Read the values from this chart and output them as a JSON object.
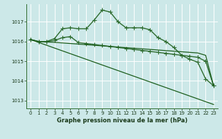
{
  "background_color": "#cce8e8",
  "grid_color": "#ffffff",
  "line_color": "#2d6b2d",
  "xlabel": "Graphe pression niveau de la mer (hPa)",
  "ylim": [
    1012.6,
    1017.9
  ],
  "xlim": [
    -0.5,
    23.5
  ],
  "yticks": [
    1013,
    1014,
    1015,
    1016,
    1017
  ],
  "xticks": [
    0,
    1,
    2,
    3,
    4,
    5,
    6,
    7,
    8,
    9,
    10,
    11,
    12,
    13,
    14,
    15,
    16,
    17,
    18,
    19,
    20,
    21,
    22,
    23
  ],
  "series": [
    {
      "x": [
        0,
        1,
        2,
        3,
        4,
        5,
        6,
        7,
        8,
        9,
        10,
        11,
        12,
        13,
        14,
        15,
        16,
        17,
        18,
        19,
        20,
        21,
        22,
        23
      ],
      "y": [
        1016.1,
        1016.0,
        1016.0,
        1016.15,
        1016.65,
        1016.7,
        1016.65,
        1016.65,
        1017.1,
        1017.6,
        1017.5,
        1017.0,
        1016.7,
        1016.7,
        1016.7,
        1016.6,
        1016.2,
        1016.0,
        1015.7,
        1015.3,
        1015.1,
        1014.95,
        1014.1,
        1013.75
      ],
      "marker": "+",
      "markersize": 4,
      "linewidth": 1.0,
      "color": "#2d6b2d"
    },
    {
      "x": [
        0,
        1,
        2,
        3,
        4,
        5,
        6,
        7,
        8,
        9,
        10,
        11,
        12,
        13,
        14,
        15,
        16,
        17,
        18,
        19,
        20,
        21,
        22,
        23
      ],
      "y": [
        1016.1,
        1016.0,
        1016.0,
        1016.05,
        1016.2,
        1016.25,
        1015.95,
        1015.9,
        1015.85,
        1015.8,
        1015.75,
        1015.7,
        1015.65,
        1015.6,
        1015.55,
        1015.5,
        1015.45,
        1015.4,
        1015.35,
        1015.3,
        1015.25,
        1015.2,
        1015.0,
        1013.75
      ],
      "marker": "+",
      "markersize": 4,
      "linewidth": 1.0,
      "color": "#2d6b2d"
    },
    {
      "x": [
        0,
        1,
        2,
        3,
        4,
        5,
        6,
        7,
        8,
        9,
        10,
        11,
        12,
        13,
        14,
        15,
        16,
        17,
        18,
        19,
        20,
        21,
        22,
        23
      ],
      "y": [
        1016.1,
        1016.0,
        1015.98,
        1015.96,
        1015.93,
        1015.9,
        1015.87,
        1015.84,
        1015.81,
        1015.78,
        1015.75,
        1015.72,
        1015.69,
        1015.66,
        1015.63,
        1015.6,
        1015.57,
        1015.54,
        1015.51,
        1015.48,
        1015.45,
        1015.42,
        1015.3,
        1013.75
      ],
      "marker": null,
      "markersize": 0,
      "linewidth": 0.9,
      "color": "#1a5c1a"
    },
    {
      "x": [
        0,
        23
      ],
      "y": [
        1016.1,
        1012.8
      ],
      "marker": null,
      "markersize": 0,
      "linewidth": 0.9,
      "color": "#1a5c1a"
    }
  ]
}
